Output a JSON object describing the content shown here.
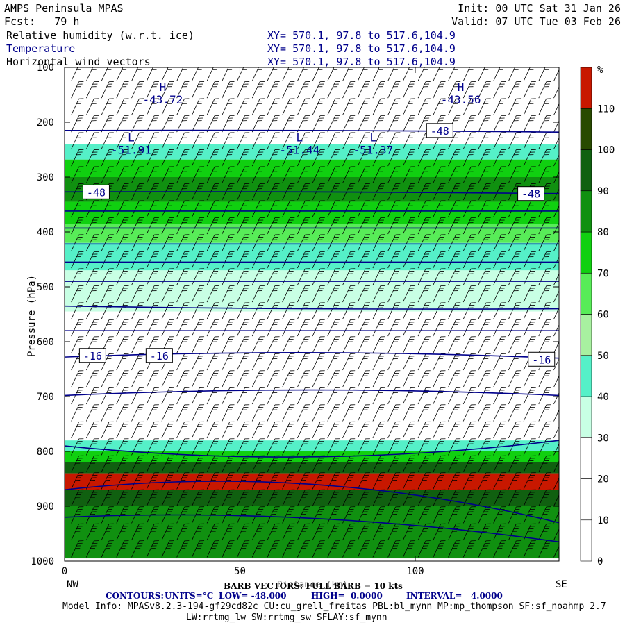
{
  "header": {
    "title": "AMPS Peninsula MPAS",
    "forecast": "Fcst:   79 h",
    "init": "Init: 00 UTC Sat 31 Jan 26",
    "valid": "Valid: 07 UTC Tue 03 Feb 26",
    "fields": [
      {
        "name": "Relative humidity (w.r.t. ice)",
        "xy": "XY= 570.1, 97.8 to 517.6,104.9"
      },
      {
        "name": "Temperature",
        "xy": "XY= 570.1, 97.8 to 517.6,104.9"
      },
      {
        "name": "Horizontal wind vectors",
        "xy": "XY= 570.1, 97.8 to 517.6,104.9"
      }
    ]
  },
  "colors": {
    "contour_line": "#00008b",
    "barb": "#000000",
    "rh_fill": [
      "#ffffff",
      "#ffffff",
      "#ffffff",
      "#c8ffe4",
      "#55f0c8",
      "#a8f0a0",
      "#58ec58",
      "#10d010",
      "#109010",
      "#106010",
      "#284a00",
      "#c81800"
    ]
  },
  "chart_data": {
    "type": "heatmap",
    "title": "Relative humidity (w.r.t. ice)",
    "xlabel": "Distance (km)",
    "ylabel": "Pressure (hPa)",
    "xlim": [
      0,
      141
    ],
    "ylim": [
      1000,
      100
    ],
    "x_ticks": [
      0,
      50,
      100
    ],
    "y_ticks": [
      100,
      200,
      300,
      400,
      500,
      600,
      700,
      800,
      900,
      1000
    ],
    "x_end_labels": {
      "left": "NW",
      "right": "SE"
    },
    "colorbar": {
      "unit": "%",
      "levels": [
        0,
        10,
        20,
        30,
        40,
        50,
        60,
        70,
        80,
        90,
        100,
        110
      ],
      "colors": [
        "#ffffff",
        "#ffffff",
        "#ffffff",
        "#c8ffe4",
        "#55f0c8",
        "#a8f0a0",
        "#58ec58",
        "#10d010",
        "#109010",
        "#106010",
        "#284a00",
        "#c81800"
      ]
    },
    "rh_bands": [
      {
        "p_top": 240,
        "p_bot": 268,
        "rh": 45
      },
      {
        "p_top": 268,
        "p_bot": 300,
        "rh": 75
      },
      {
        "p_top": 300,
        "p_bot": 345,
        "rh": 85
      },
      {
        "p_top": 345,
        "p_bot": 385,
        "rh": 75
      },
      {
        "p_top": 385,
        "p_bot": 420,
        "rh": 65
      },
      {
        "p_top": 420,
        "p_bot": 470,
        "rh": 45
      },
      {
        "p_top": 470,
        "p_bot": 545,
        "rh": 35
      },
      {
        "p_top": 780,
        "p_bot": 800,
        "rh": 45
      },
      {
        "p_top": 800,
        "p_bot": 820,
        "rh": 75
      },
      {
        "p_top": 820,
        "p_bot": 840,
        "rh": 95
      },
      {
        "p_top": 840,
        "p_bot": 870,
        "rh": 112
      },
      {
        "p_top": 870,
        "p_bot": 900,
        "rh": 95
      },
      {
        "p_top": 900,
        "p_bot": 995,
        "rh": 85
      }
    ],
    "temperature_contours": {
      "units": "°C",
      "low": -48.0,
      "high": 0.0,
      "interval": 4.0,
      "lines": [
        {
          "value": -48,
          "p": [
            215,
            215,
            218
          ]
        },
        {
          "value": -48,
          "p": [
            327,
            327,
            330
          ]
        },
        {
          "value": -44,
          "p": [
            362,
            362,
            362
          ]
        },
        {
          "value": -40,
          "p": [
            393,
            393,
            393
          ]
        },
        {
          "value": -36,
          "p": [
            422,
            422,
            422
          ]
        },
        {
          "value": -32,
          "p": [
            455,
            455,
            455
          ]
        },
        {
          "value": -28,
          "p": [
            490,
            490,
            490
          ]
        },
        {
          "value": -24,
          "p": [
            535,
            540,
            540
          ]
        },
        {
          "value": -20,
          "p": [
            580,
            580,
            580
          ]
        },
        {
          "value": -16,
          "p": [
            628,
            620,
            630
          ]
        },
        {
          "value": -12,
          "p": [
            698,
            688,
            698
          ]
        },
        {
          "value": -8,
          "p": [
            790,
            810,
            780
          ]
        },
        {
          "value": -4,
          "p": [
            870,
            860,
            930
          ]
        },
        {
          "value": 0,
          "p": [
            920,
            922,
            965
          ]
        }
      ],
      "labels": [
        {
          "text": "-48",
          "x": 107,
          "p": 215
        },
        {
          "text": "-48",
          "x": 9,
          "p": 327
        },
        {
          "text": "-48",
          "x": 133,
          "p": 330
        },
        {
          "text": "-16",
          "x": 8,
          "p": 625
        },
        {
          "text": "-16",
          "x": 27,
          "p": 625
        },
        {
          "text": "-16",
          "x": 136,
          "p": 632
        }
      ]
    },
    "extrema": [
      {
        "type": "H",
        "value": "-43.72",
        "x": 28,
        "p": 158
      },
      {
        "type": "H",
        "value": "-43.56",
        "x": 113,
        "p": 158
      },
      {
        "type": "L",
        "value": "-51.91",
        "x": 19,
        "p": 250
      },
      {
        "type": "L",
        "value": "-51.44",
        "x": 67,
        "p": 250
      },
      {
        "type": "L",
        "value": "-51.37",
        "x": 88,
        "p": 250
      }
    ],
    "wind_vectors": {
      "label": "BARB VECTORS: FULL BARB = 10 kts"
    },
    "footer": {
      "contours_label": "CONTOURS:",
      "units": "UNITS=°C",
      "low": "LOW= -48.000",
      "high": "HIGH=  0.0000",
      "interval": "INTERVAL=   4.0000"
    }
  },
  "model_info": {
    "line1": "Model Info: MPASv8.2.3-194-gf29cd82c CU:cu_grell_freitas PBL:bl_mynn MP:mp_thompson SF:sf_noahmp 2.7",
    "line2": "LW:rrtmg_lw SW:rrtmg_sw SFLAY:sf_mynn"
  }
}
